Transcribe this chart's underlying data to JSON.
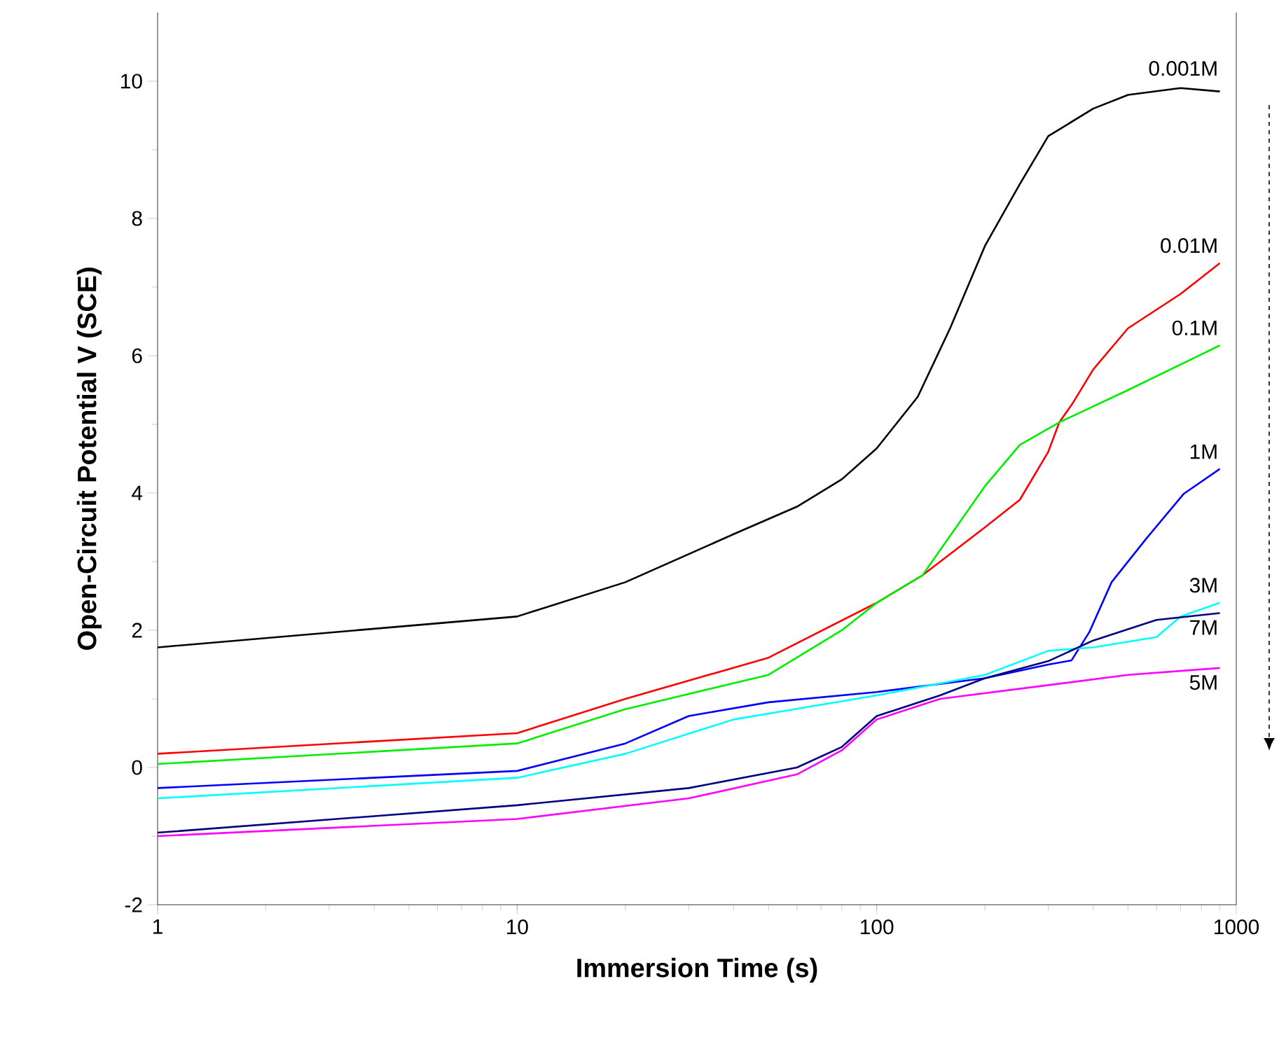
{
  "chart_data": {
    "type": "line",
    "xlabel": "Immersion Time (s)",
    "ylabel": "Open-Circuit Potential   V (SCE)",
    "log": "x",
    "xlim": [
      1,
      1000
    ],
    "ylim": [
      -2,
      11
    ],
    "xticks": [
      1,
      10,
      100,
      1000
    ],
    "yticks": [
      -2,
      0,
      2,
      4,
      6,
      8,
      10
    ],
    "grid": false,
    "marker": "none",
    "line_style": "solid",
    "series": [
      {
        "name": "0.001M",
        "color": "#000000",
        "x": [
          1,
          10,
          20,
          40,
          60,
          80,
          100,
          130,
          160,
          200,
          250,
          300,
          400,
          500,
          700,
          900
        ],
        "values": [
          1.75,
          2.2,
          2.7,
          3.4,
          3.8,
          4.2,
          4.65,
          5.4,
          6.4,
          7.6,
          8.5,
          9.2,
          9.6,
          9.8,
          9.9,
          9.85
        ]
      },
      {
        "name": "0.01M",
        "color": "#ff0000",
        "x": [
          1,
          10,
          20,
          50,
          100,
          134,
          200,
          250,
          300,
          322,
          350,
          400,
          500,
          700,
          900
        ],
        "values": [
          0.2,
          0.5,
          1.0,
          1.6,
          2.4,
          2.8,
          3.5,
          3.9,
          4.6,
          5.03,
          5.3,
          5.8,
          6.4,
          6.9,
          7.35
        ]
      },
      {
        "name": "0.1M",
        "color": "#00ee00",
        "x": [
          1,
          10,
          20,
          50,
          80,
          100,
          134,
          200,
          250,
          322,
          500,
          900
        ],
        "values": [
          0.05,
          0.35,
          0.85,
          1.35,
          2.0,
          2.4,
          2.8,
          4.1,
          4.7,
          5.03,
          5.5,
          6.15
        ]
      },
      {
        "name": "1M",
        "color": "#0000ff",
        "x": [
          1,
          10,
          20,
          30,
          50,
          100,
          200,
          300,
          348,
          390,
          450,
          563,
          715,
          900
        ],
        "values": [
          -0.3,
          -0.05,
          0.35,
          0.75,
          0.95,
          1.1,
          1.3,
          1.5,
          1.56,
          1.97,
          2.7,
          3.34,
          3.99,
          4.35
        ]
      },
      {
        "name": "3M",
        "color": "#00ffff",
        "x": [
          1,
          10,
          20,
          40,
          100,
          200,
          300,
          400,
          600,
          700,
          900
        ],
        "values": [
          -0.45,
          -0.15,
          0.2,
          0.7,
          1.05,
          1.35,
          1.7,
          1.75,
          1.9,
          2.2,
          2.4
        ]
      },
      {
        "name": "7M",
        "color": "#000080",
        "x": [
          1,
          10,
          30,
          60,
          80,
          100,
          150,
          200,
          300,
          400,
          600,
          900
        ],
        "values": [
          -0.95,
          -0.55,
          -0.3,
          0.0,
          0.3,
          0.75,
          1.05,
          1.3,
          1.55,
          1.85,
          2.15,
          2.25
        ]
      },
      {
        "name": "5M",
        "color": "#ff00ff",
        "x": [
          1,
          10,
          30,
          60,
          80,
          100,
          150,
          300,
          500,
          900
        ],
        "values": [
          -1.0,
          -0.75,
          -0.45,
          -0.1,
          0.25,
          0.7,
          1.0,
          1.2,
          1.35,
          1.45
        ]
      }
    ]
  }
}
